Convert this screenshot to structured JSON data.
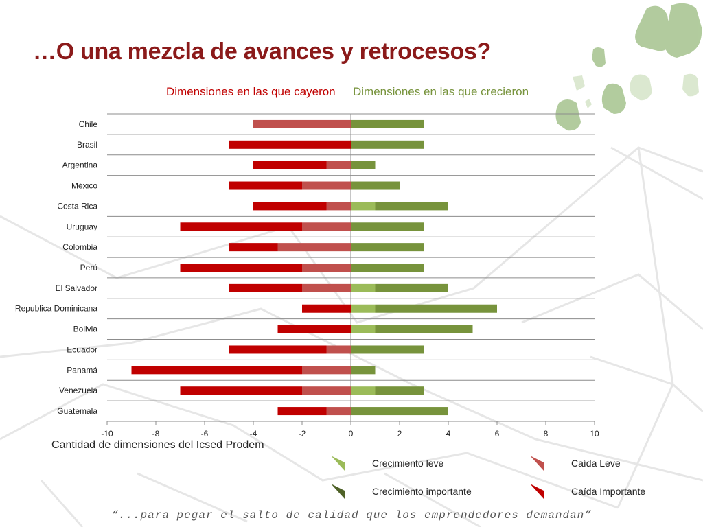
{
  "title": "…O una mezcla de avances y retrocesos?",
  "header_left": "Dimensiones en las que cayeron",
  "header_right": "Dimensiones en las que crecieron",
  "footer_quote": "“...para pegar el salto de calidad que los emprendedores demandan”",
  "colors": {
    "caida_leve": "#c0504d",
    "caida_importante": "#c00000",
    "crecimiento_leve": "#9bbb59",
    "crecimiento_importante": "#77933c",
    "crecimiento_importante_legend": "#4f6228"
  },
  "chart_data": {
    "type": "bar",
    "orientation": "horizontal",
    "stacked": true,
    "xlabel": "Cantidad de dimensiones del Icsed Prodem",
    "xlim": [
      -10,
      10
    ],
    "xticks": [
      -10,
      -8,
      -6,
      -4,
      -2,
      0,
      2,
      4,
      6,
      8,
      10
    ],
    "grid": true,
    "legend_placement": "bottom-right",
    "categories": [
      "Chile",
      "Brasil",
      "Argentina",
      "México",
      "Costa Rica",
      "Uruguay",
      "Colombia",
      "Perú",
      "El Salvador",
      "Republica Dominicana",
      "Bolivia",
      "Ecuador",
      "Panamá",
      "Venezuela",
      "Guatemala"
    ],
    "series": [
      {
        "name": "Caída Leve",
        "values": [
          -4,
          0,
          -1,
          -2,
          -1,
          -2,
          -3,
          -2,
          -2,
          0,
          0,
          -1,
          -2,
          -2,
          -1
        ]
      },
      {
        "name": "Caída Importante",
        "values": [
          0,
          -5,
          -3,
          -3,
          -3,
          -5,
          -2,
          -5,
          -3,
          -2,
          -3,
          -4,
          -7,
          -5,
          -2
        ]
      },
      {
        "name": "Crecimiento leve",
        "values": [
          0,
          0,
          0,
          0,
          1,
          0,
          0,
          0,
          1,
          1,
          1,
          0,
          0,
          1,
          0
        ]
      },
      {
        "name": "Crecimiento importante",
        "values": [
          3,
          3,
          1,
          2,
          3,
          3,
          3,
          3,
          3,
          5,
          4,
          3,
          1,
          2,
          4
        ]
      }
    ]
  }
}
